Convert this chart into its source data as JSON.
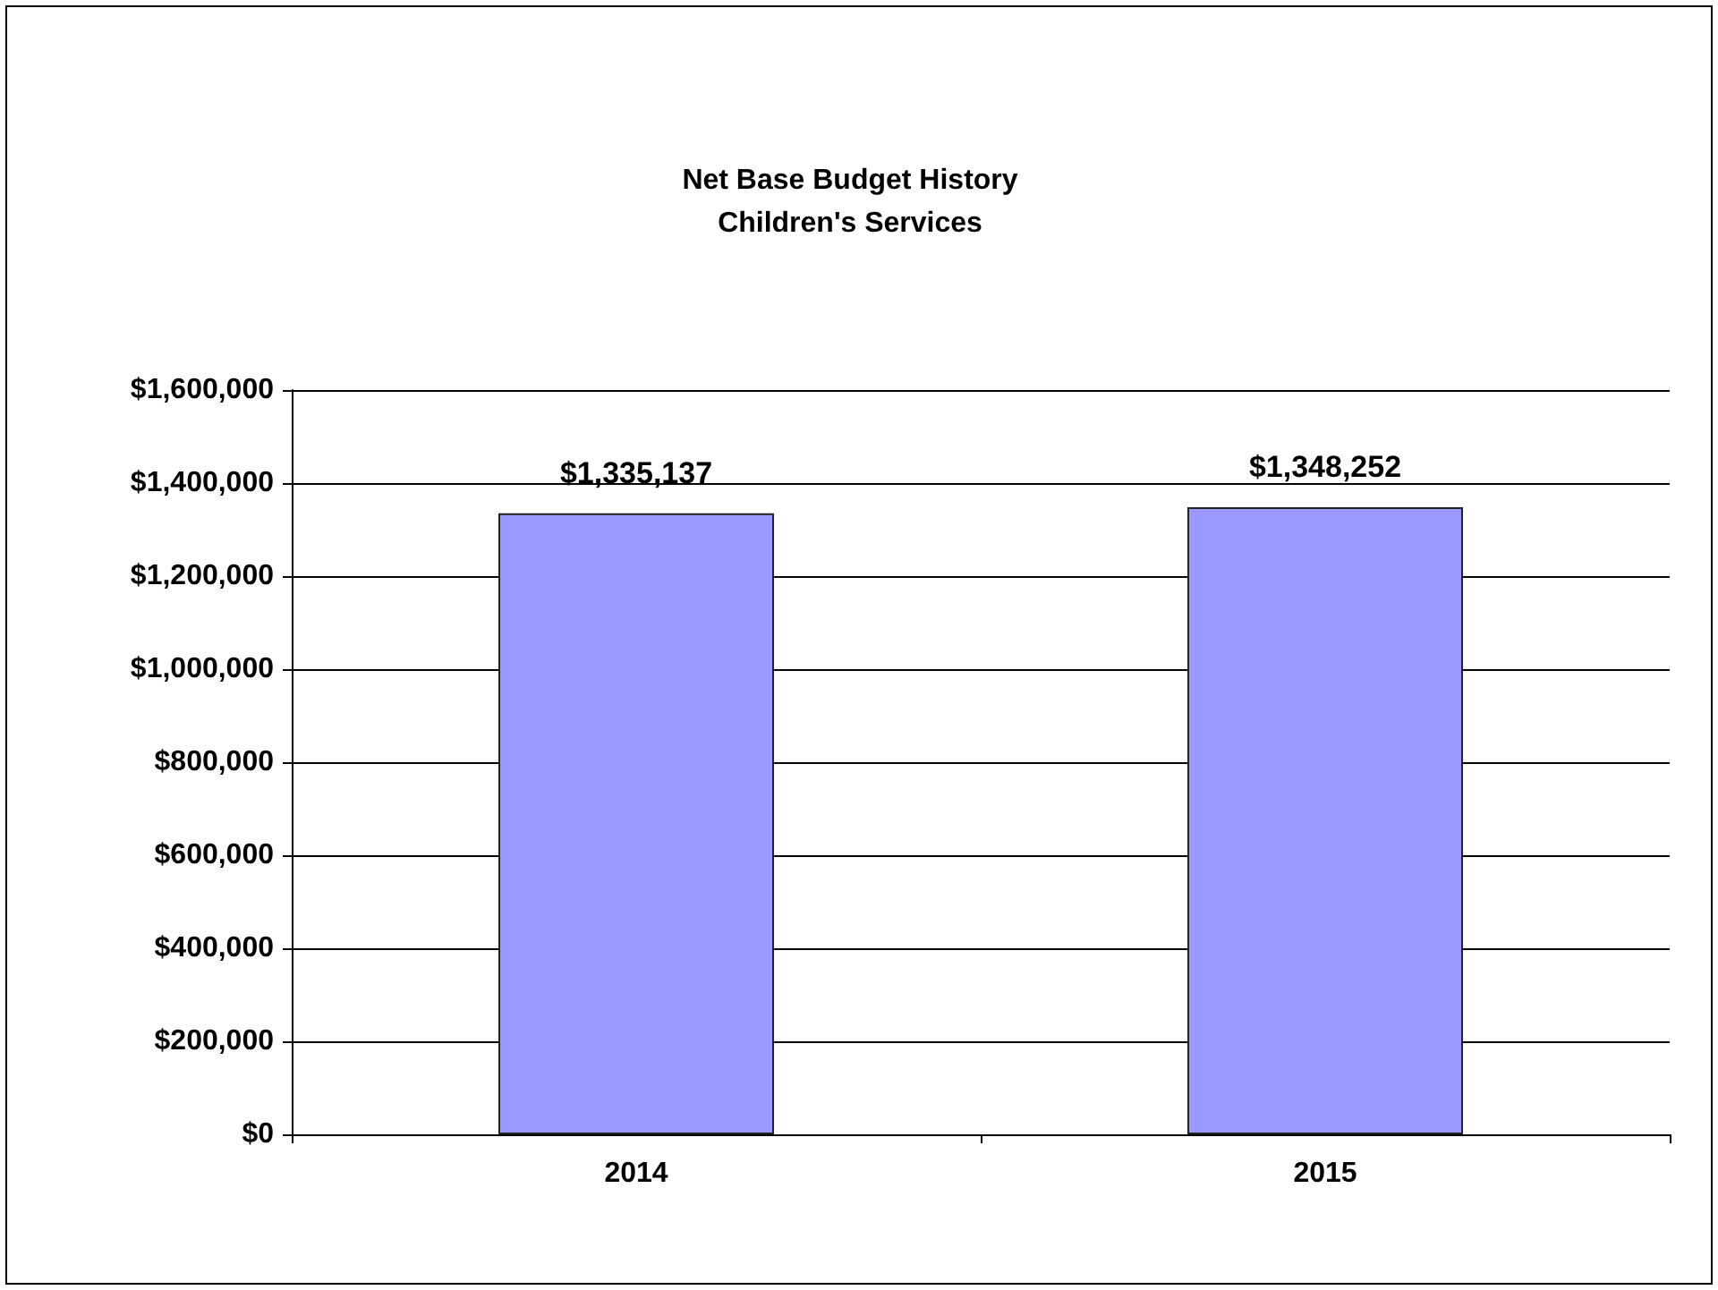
{
  "chart_data": {
    "type": "bar",
    "title": "Net Base Budget History",
    "subtitle": "Children's Services",
    "categories": [
      "2014",
      "2015"
    ],
    "values": [
      1335137,
      1348252
    ],
    "color": "#9999ff",
    "value_labels": [
      "$1,335,137",
      "$1,348,252"
    ],
    "ylim": [
      0,
      1600000
    ],
    "yticks": [
      {
        "value": 0,
        "label": "$0"
      },
      {
        "value": 200000,
        "label": "$200,000"
      },
      {
        "value": 400000,
        "label": "$400,000"
      },
      {
        "value": 600000,
        "label": "$600,000"
      },
      {
        "value": 800000,
        "label": "$800,000"
      },
      {
        "value": 1000000,
        "label": "$1,000,000"
      },
      {
        "value": 1200000,
        "label": "$1,200,000"
      },
      {
        "value": 1400000,
        "label": "$1,400,000"
      },
      {
        "value": 1600000,
        "label": "$1,600,000"
      }
    ],
    "grid": "y"
  }
}
